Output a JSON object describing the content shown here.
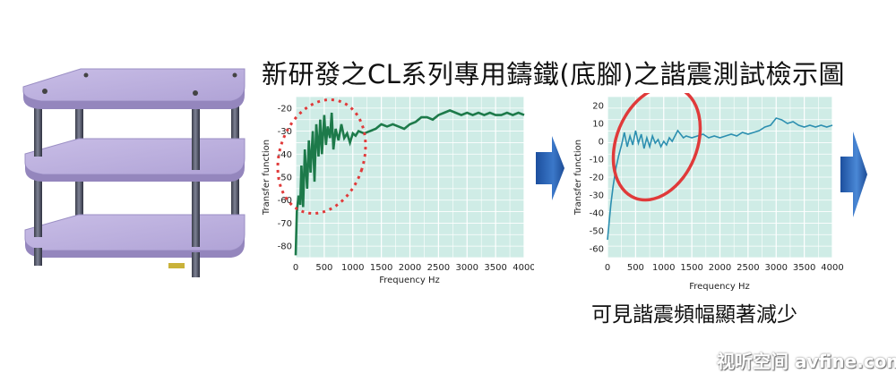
{
  "title": "新研發之CL系列專用鑄鐵(底腳)之諧震測試檢示圖",
  "caption": "可見諧震頻幅顯著減少",
  "watermark": "视听空间 avfine.com",
  "colors": {
    "plot_bg": "#cfece6",
    "grid": "#ffffff",
    "series1": "#1d7a4a",
    "series2": "#2c8fb0",
    "highlight": "#e03a3a",
    "arrow": "#2f66b8"
  },
  "icons": [
    "equipment-rack-image",
    "right-arrow-icon"
  ],
  "chart_data": [
    {
      "type": "line",
      "title": "",
      "xlabel": "Frequency Hz",
      "ylabel": "Transfer function",
      "xlim": [
        0,
        4000
      ],
      "ylim": [
        -85,
        -15
      ],
      "xticks": [
        0,
        500,
        1000,
        1500,
        2000,
        2500,
        3000,
        3500,
        4000
      ],
      "yticks": [
        -20,
        -30,
        -40,
        -50,
        -60,
        -70,
        -80
      ],
      "grid": true,
      "annotation": "dashed red ellipse around 0–1100 Hz resonance region",
      "series": [
        {
          "x": [
            0,
            20,
            50,
            80,
            100,
            130,
            160,
            200,
            230,
            260,
            300,
            330,
            360,
            400,
            430,
            460,
            500,
            530,
            560,
            600,
            630,
            660,
            700,
            750,
            800,
            850,
            900,
            950,
            1000,
            1050,
            1100,
            1200,
            1300,
            1400,
            1500,
            1600,
            1700,
            1800,
            1900,
            2000,
            2100,
            2200,
            2300,
            2400,
            2500,
            2600,
            2700,
            2800,
            2900,
            3000,
            3100,
            3200,
            3300,
            3400,
            3500,
            3600,
            3700,
            3800,
            3900,
            4000
          ],
          "y": [
            -84,
            -65,
            -58,
            -62,
            -45,
            -63,
            -38,
            -55,
            -34,
            -48,
            -30,
            -52,
            -27,
            -41,
            -25,
            -40,
            -23,
            -36,
            -28,
            -33,
            -22,
            -38,
            -29,
            -34,
            -27,
            -33,
            -31,
            -35,
            -31,
            -32,
            -30,
            -31,
            -30,
            -29,
            -27,
            -28,
            -27,
            -28,
            -29,
            -27,
            -26,
            -24,
            -24,
            -25,
            -23,
            -22,
            -21,
            -22,
            -23,
            -22,
            -23,
            -22,
            -23,
            -22,
            -23,
            -23,
            -22,
            -23,
            -22,
            -23
          ]
        }
      ]
    },
    {
      "type": "line",
      "title": "",
      "xlabel": "Frequency Hz",
      "ylabel": "Transfer function",
      "xlim": [
        0,
        4000
      ],
      "ylim": [
        -65,
        25
      ],
      "xticks": [
        0,
        500,
        1000,
        1500,
        2000,
        2500,
        3000,
        3500,
        4000
      ],
      "yticks": [
        20,
        10,
        0,
        -10,
        -20,
        -30,
        -40,
        -50,
        -60
      ],
      "grid": true,
      "annotation": "red ellipse around 0–1500 Hz resonance region",
      "series": [
        {
          "x": [
            0,
            30,
            60,
            100,
            150,
            200,
            250,
            300,
            350,
            400,
            450,
            500,
            550,
            600,
            650,
            700,
            750,
            800,
            850,
            900,
            950,
            1000,
            1050,
            1100,
            1150,
            1200,
            1250,
            1300,
            1350,
            1400,
            1500,
            1600,
            1700,
            1800,
            1900,
            2000,
            2100,
            2200,
            2300,
            2400,
            2500,
            2600,
            2700,
            2800,
            2900,
            3000,
            3100,
            3200,
            3300,
            3400,
            3500,
            3600,
            3700,
            3800,
            3900,
            4000
          ],
          "y": [
            -55,
            -45,
            -35,
            -25,
            -15,
            -8,
            -2,
            5,
            -3,
            3,
            -2,
            6,
            -1,
            4,
            -4,
            2,
            -3,
            3,
            -1,
            1,
            -3,
            0,
            -2,
            2,
            0,
            3,
            6,
            4,
            2,
            3,
            2,
            3,
            4,
            2,
            3,
            2,
            3,
            4,
            3,
            5,
            4,
            5,
            6,
            8,
            9,
            13,
            12,
            10,
            11,
            9,
            8,
            9,
            8,
            9,
            8,
            9
          ]
        }
      ]
    }
  ]
}
